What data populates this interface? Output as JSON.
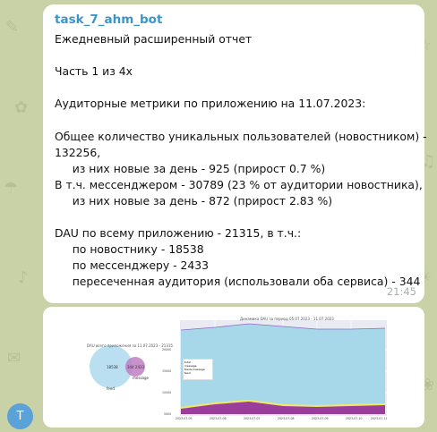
{
  "chat": {
    "sender": "task_7_ahm_bot",
    "avatar_letter": "T",
    "accent_color": "#3a96c8"
  },
  "message": {
    "text": "Ежедневный расширенный отчет\n\nЧасть 1 из 4х\n\nАудиторные метрики по приложению на 11.07.2023:\n\nОбщее количество уникальных пользователей (новостником) -\n132256,\n     из них новые за день - 925 (прирост 0.7 %)\nВ т.ч. мессенджером - 30789 (23 % от аудитории новостника),\n     из них новые за день - 872 (прирост 2.83 %)\n\nDAU по всему приложению - 21315, в т.ч.:\n     по новостнику - 18538\n     по мессенджеру - 2433\n     пересеченная аудитория (использовали оба сервиса) - 344",
    "time": "21:45"
  },
  "image": {
    "venn_title": "DAU всего приложения за 11.07.2023 - 21315",
    "venn_left_value": "18538",
    "venn_right_value": "344   2433",
    "venn_left_label": "feed",
    "venn_right_label": "message",
    "area_title": "Динамика DAU за период 05.07.2023 - 11.07.2023",
    "legend": [
      "total",
      "message",
      "feed+message",
      "feed"
    ],
    "y_ticks": [
      "20000",
      "15000",
      "10000",
      "5000",
      "0"
    ],
    "x_ticks": [
      "2023-07-05",
      "2023-07-06",
      "2023-07-07",
      "2023-07-08",
      "2023-07-09",
      "2023-07-10",
      "2023-07-11"
    ]
  }
}
